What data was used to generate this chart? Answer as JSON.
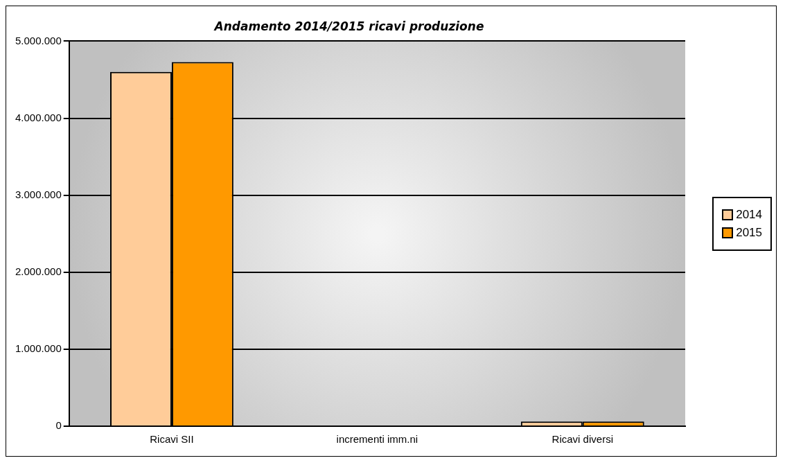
{
  "chart_data": {
    "type": "bar",
    "title": "Andamento 2014/2015 ricavi produzione",
    "categories": [
      "Ricavi SII",
      "incrementi imm.ni",
      "Ricavi diversi"
    ],
    "series": [
      {
        "name": "2014",
        "color": "#ffcc99",
        "values": [
          4600000,
          0,
          60000
        ]
      },
      {
        "name": "2015",
        "color": "#ff9900",
        "values": [
          4730000,
          0,
          60000
        ]
      }
    ],
    "ylim": [
      0,
      5000000
    ],
    "yticks": [
      {
        "value": 0,
        "label": "0"
      },
      {
        "value": 1000000,
        "label": "1.000.000"
      },
      {
        "value": 2000000,
        "label": "2.000.000"
      },
      {
        "value": 3000000,
        "label": "3.000.000"
      },
      {
        "value": 4000000,
        "label": "4.000.000"
      },
      {
        "value": 5000000,
        "label": "5.000.000"
      }
    ],
    "grid": "y",
    "legend": "right"
  }
}
